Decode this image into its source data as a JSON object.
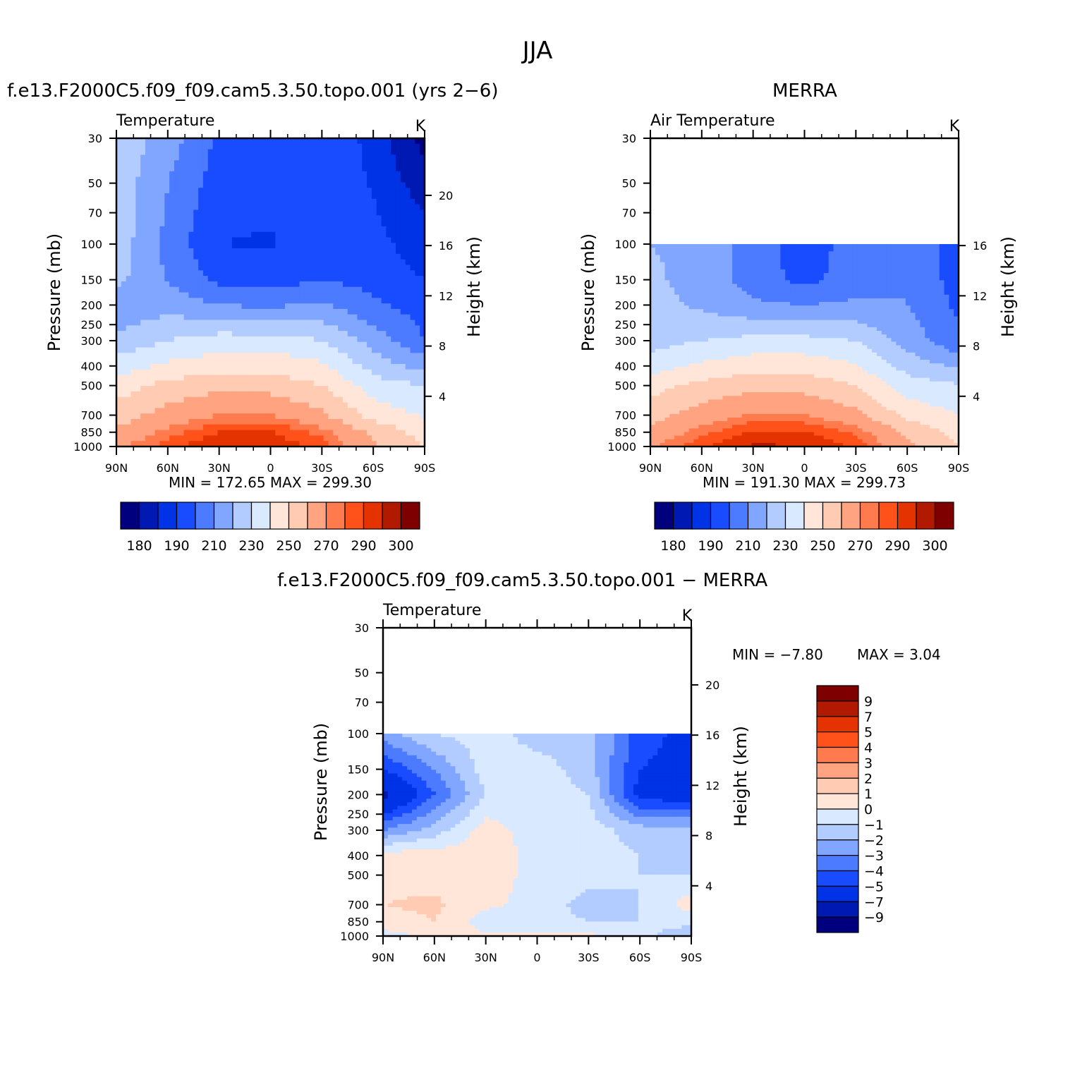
{
  "title": "JJA",
  "colors": {
    "abs": [
      "#00007f",
      "#0019b2",
      "#0033e5",
      "#1a4cff",
      "#4c7bff",
      "#80a6ff",
      "#b3ccff",
      "#d9e9ff",
      "#ffe6d9",
      "#ffccb3",
      "#ffa380",
      "#ff7a4d",
      "#ff521a",
      "#e53300",
      "#b21a00",
      "#7f0000"
    ],
    "diff": [
      "#00007f",
      "#0019b2",
      "#0033e5",
      "#1a4cff",
      "#4c7bff",
      "#80a6ff",
      "#b3ccff",
      "#d9e9ff",
      "#ffe6d9",
      "#ffccb3",
      "#ffa380",
      "#ff7a4d",
      "#ff521a",
      "#e53300",
      "#b21a00",
      "#7f0000"
    ]
  },
  "chart_data": [
    {
      "type": "heatmap",
      "title": "f.e13.F2000C5.f09_f09.cam5.3.50.topo.001 (yrs 2−6)",
      "left_label": "Temperature",
      "units": "K",
      "ylabel": "Pressure (mb)",
      "y2label": "Height (km)",
      "x_ticks": [
        "90N",
        "60N",
        "30N",
        "0",
        "30S",
        "60S",
        "90S"
      ],
      "y_ticks": [
        "30",
        "50",
        "70",
        "100",
        "150",
        "200",
        "250",
        "300",
        "400",
        "500",
        "700",
        "850",
        "1000"
      ],
      "y2_ticks": [
        "20",
        "16",
        "12",
        "8",
        "4"
      ],
      "minmax": "MIN =  172.65   MAX =  299.30",
      "colorbar_labels": [
        "180",
        "190",
        "210",
        "230",
        "250",
        "270",
        "290",
        "300"
      ],
      "lat": [
        90,
        60,
        30,
        0,
        -30,
        -60,
        -90
      ],
      "levels_mb": [
        30,
        50,
        70,
        100,
        150,
        200,
        300,
        400,
        500,
        700,
        850,
        1000
      ],
      "values": [
        [
          237,
          225,
          208,
          206,
          210,
          196,
          176
        ],
        [
          237,
          220,
          205,
          203,
          208,
          199,
          184
        ],
        [
          237,
          219,
          202,
          201,
          207,
          201,
          190
        ],
        [
          236,
          217,
          200,
          199,
          206,
          203,
          195
        ],
        [
          233,
          219,
          207,
          205,
          210,
          206,
          200
        ],
        [
          222,
          226,
          220,
          218,
          222,
          212,
          205
        ],
        [
          232,
          240,
          245,
          245,
          240,
          226,
          210
        ],
        [
          245,
          252,
          256,
          256,
          252,
          236,
          226
        ],
        [
          255,
          263,
          267,
          266,
          260,
          245,
          240
        ],
        [
          265,
          274,
          280,
          280,
          272,
          256,
          249
        ],
        [
          272,
          282,
          290,
          291,
          283,
          268,
          255
        ],
        [
          278,
          288,
          295,
          294,
          288,
          272,
          260
        ]
      ]
    },
    {
      "type": "heatmap",
      "title": "MERRA",
      "left_label": "Air Temperature",
      "units": "K",
      "ylabel": "Pressure (mb)",
      "y2label": "Height (km)",
      "x_ticks": [
        "90N",
        "60N",
        "30N",
        "0",
        "30S",
        "60S",
        "90S"
      ],
      "y_ticks": [
        "30",
        "50",
        "70",
        "100",
        "150",
        "200",
        "250",
        "300",
        "400",
        "500",
        "700",
        "850",
        "1000"
      ],
      "y2_ticks": [
        "16",
        "12",
        "8",
        "4"
      ],
      "minmax": "MIN =  191.30   MAX =  299.73",
      "colorbar_labels": [
        "180",
        "190",
        "210",
        "230",
        "250",
        "270",
        "290",
        "300"
      ],
      "lat": [
        90,
        60,
        30,
        0,
        -30,
        -60,
        -90
      ],
      "levels_mb": [
        100,
        150,
        200,
        300,
        400,
        500,
        700,
        850,
        1000
      ],
      "values": [
        [
          230,
          227,
          215,
          205,
          214,
          220,
          203
        ],
        [
          232,
          226,
          215,
          207,
          215,
          220,
          205
        ],
        [
          234,
          228,
          222,
          220,
          222,
          220,
          208
        ],
        [
          236,
          240,
          243,
          243,
          240,
          226,
          212
        ],
        [
          245,
          252,
          256,
          256,
          251,
          236,
          228
        ],
        [
          256,
          263,
          267,
          266,
          260,
          245,
          241
        ],
        [
          266,
          275,
          281,
          280,
          273,
          257,
          250
        ],
        [
          273,
          283,
          291,
          291,
          284,
          268,
          256
        ],
        [
          279,
          289,
          296,
          295,
          289,
          273,
          261
        ]
      ]
    },
    {
      "type": "heatmap",
      "title": "f.e13.F2000C5.f09_f09.cam5.3.50.topo.001 − MERRA",
      "left_label": "Temperature",
      "units": "K",
      "ylabel": "Pressure (mb)",
      "y2label": "Height (km)",
      "x_ticks": [
        "90N",
        "60N",
        "30N",
        "0",
        "30S",
        "60S",
        "90S"
      ],
      "y_ticks": [
        "30",
        "50",
        "70",
        "100",
        "150",
        "200",
        "250",
        "300",
        "400",
        "500",
        "700",
        "850",
        "1000"
      ],
      "y2_ticks": [
        "20",
        "16",
        "12",
        "8",
        "4"
      ],
      "minmax_min": "MIN =   −7.80",
      "minmax_max": "MAX =    3.04",
      "colorbar_labels": [
        "9",
        "7",
        "5",
        "4",
        "3",
        "2",
        "1",
        "0",
        "−1",
        "−2",
        "−3",
        "−4",
        "−5",
        "−7",
        "−9"
      ],
      "lat": [
        90,
        60,
        30,
        0,
        -30,
        -60,
        -90
      ],
      "levels_mb": [
        100,
        150,
        200,
        300,
        400,
        500,
        700,
        850,
        1000
      ],
      "values": [
        [
          -2.5,
          -1.0,
          -0.5,
          -1.5,
          -1.5,
          -4.5,
          -5.5
        ],
        [
          -5.0,
          -3.0,
          -0.5,
          -0.5,
          -1.5,
          -5.0,
          -5.5
        ],
        [
          -7.5,
          -4.0,
          -1.0,
          -0.5,
          -1.0,
          -5.5,
          -6.0
        ],
        [
          -3.0,
          -1.5,
          0.5,
          -0.5,
          -0.5,
          -1.5,
          -1.5
        ],
        [
          0.5,
          0.5,
          0.5,
          -0.3,
          -0.5,
          -1.0,
          -1.5
        ],
        [
          0.7,
          0.6,
          0.3,
          -0.2,
          -0.5,
          -1.0,
          -1.0
        ],
        [
          1.0,
          1.2,
          0.2,
          -0.3,
          -1.5,
          -1.0,
          0.5
        ],
        [
          0.6,
          1.0,
          -0.5,
          -0.5,
          -1.0,
          -1.0,
          -0.5
        ],
        [
          -0.5,
          0.3,
          0.2,
          0.3,
          0.2,
          -0.5,
          -2.0
        ]
      ]
    }
  ]
}
